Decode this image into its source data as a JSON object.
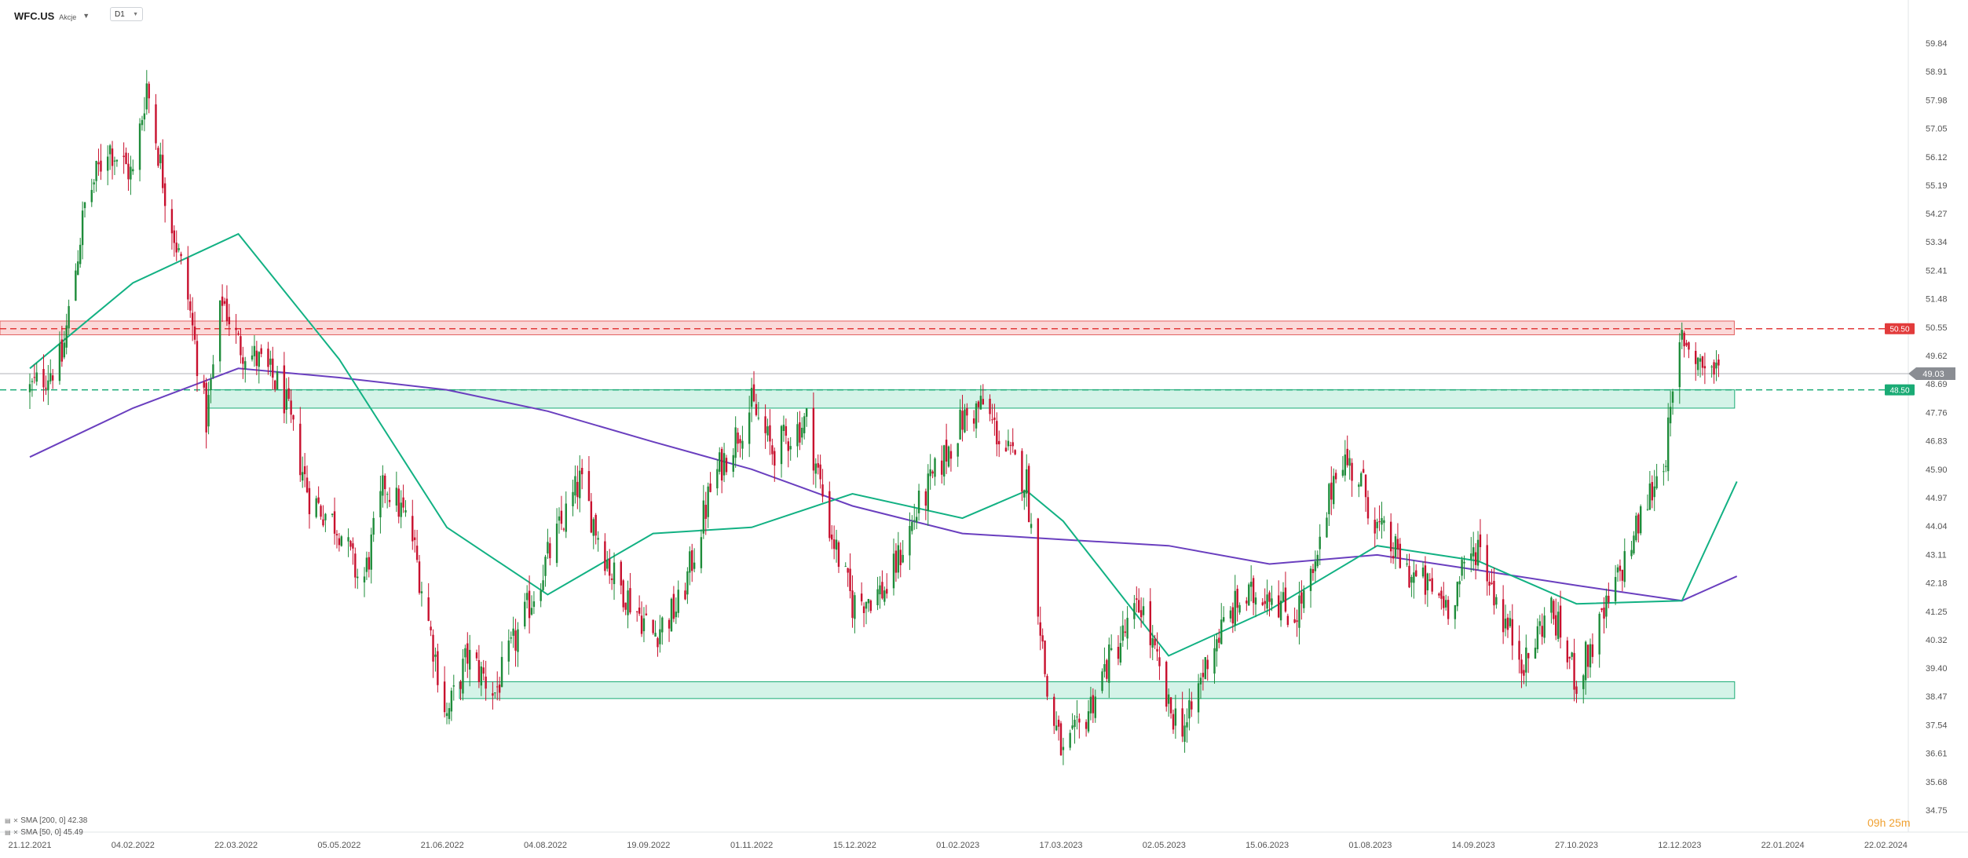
{
  "header": {
    "symbol": "WFC.US",
    "instrument_type": "Akcje",
    "timeframe": "D1"
  },
  "legend": {
    "sma200": "SMA [200, 0] 42.38",
    "sma50": "SMA [50, 0] 45.49"
  },
  "countdown": "09h 25m",
  "colors": {
    "up": "#1e8c3a",
    "down": "#c8102e",
    "sma200": "#6a3fbf",
    "sma50": "#12b183",
    "resistance": "#e23b3b",
    "support": "#1aab75",
    "price_tag": "#8a8d93"
  },
  "chart_data": {
    "type": "candlestick",
    "ylim": [
      34.75,
      60.5
    ],
    "y_ticks": [
      "59.84",
      "58.91",
      "57.98",
      "57.05",
      "56.12",
      "55.19",
      "54.27",
      "53.34",
      "52.41",
      "51.48",
      "50.55",
      "49.62",
      "48.69",
      "47.76",
      "46.83",
      "45.90",
      "44.97",
      "44.04",
      "43.11",
      "42.18",
      "41.25",
      "40.32",
      "39.40",
      "38.47",
      "37.54",
      "36.61",
      "35.68",
      "34.75"
    ],
    "x_ticks": [
      "21.12.2021",
      "04.02.2022",
      "22.03.2022",
      "05.05.2022",
      "21.06.2022",
      "04.08.2022",
      "19.09.2022",
      "01.11.2022",
      "15.12.2022",
      "01.02.2023",
      "17.03.2023",
      "02.05.2023",
      "15.06.2023",
      "01.08.2023",
      "14.09.2023",
      "27.10.2023",
      "12.12.2023",
      "22.01.2024",
      "22.02.2024"
    ],
    "price_path": [
      [
        "21.12.2021",
        48.5
      ],
      [
        "04.01.2022",
        49.5
      ],
      [
        "14.01.2022",
        54.5
      ],
      [
        "24.01.2022",
        56.5
      ],
      [
        "04.02.2022",
        55.5
      ],
      [
        "10.02.2022",
        58.5
      ],
      [
        "18.02.2022",
        55.0
      ],
      [
        "28.02.2022",
        51.5
      ],
      [
        "08.03.2022",
        47.5
      ],
      [
        "15.03.2022",
        51.5
      ],
      [
        "22.03.2022",
        50.0
      ],
      [
        "30.03.2022",
        49.5
      ],
      [
        "10.04.2022",
        48.5
      ],
      [
        "22.04.2022",
        45.0
      ],
      [
        "05.05.2022",
        44.0
      ],
      [
        "15.05.2022",
        42.0
      ],
      [
        "25.05.2022",
        45.5
      ],
      [
        "05.06.2022",
        44.0
      ],
      [
        "21.06.2022",
        37.8
      ],
      [
        "30.06.2022",
        39.8
      ],
      [
        "12.07.2022",
        38.6
      ],
      [
        "04.08.2022",
        43.0
      ],
      [
        "18.08.2022",
        45.5
      ],
      [
        "01.09.2022",
        42.5
      ],
      [
        "19.09.2022",
        40.5
      ],
      [
        "01.10.2022",
        41.5
      ],
      [
        "15.10.2022",
        45.5
      ],
      [
        "01.11.2022",
        48.0
      ],
      [
        "10.11.2022",
        46.5
      ],
      [
        "25.11.2022",
        47.5
      ],
      [
        "05.12.2022",
        44.0
      ],
      [
        "15.12.2022",
        41.5
      ],
      [
        "30.12.2022",
        42.0
      ],
      [
        "12.01.2023",
        44.5
      ],
      [
        "22.01.2023",
        46.0
      ],
      [
        "01.02.2023",
        47.5
      ],
      [
        "10.02.2023",
        48.0
      ],
      [
        "20.02.2023",
        46.5
      ],
      [
        "01.03.2023",
        45.5
      ],
      [
        "10.03.2023",
        38.5
      ],
      [
        "17.03.2023",
        36.5
      ],
      [
        "25.03.2023",
        37.5
      ],
      [
        "05.04.2023",
        39.5
      ],
      [
        "20.04.2023",
        41.5
      ],
      [
        "02.05.2023",
        38.0
      ],
      [
        "10.05.2023",
        37.5
      ],
      [
        "20.05.2023",
        40.0
      ],
      [
        "01.06.2023",
        41.5
      ],
      [
        "15.06.2023",
        42.0
      ],
      [
        "25.06.2023",
        41.0
      ],
      [
        "05.07.2023",
        42.5
      ],
      [
        "15.07.2023",
        46.5
      ],
      [
        "25.07.2023",
        45.5
      ],
      [
        "01.08.2023",
        44.0
      ],
      [
        "15.08.2023",
        42.5
      ],
      [
        "01.09.2023",
        41.5
      ],
      [
        "14.09.2023",
        43.5
      ],
      [
        "25.09.2023",
        41.0
      ],
      [
        "05.10.2023",
        39.5
      ],
      [
        "15.10.2023",
        41.5
      ],
      [
        "27.10.2023",
        39.0
      ],
      [
        "05.11.2023",
        40.5
      ],
      [
        "15.11.2023",
        42.5
      ],
      [
        "25.11.2023",
        44.5
      ],
      [
        "05.12.2023",
        46.5
      ],
      [
        "12.12.2023",
        50.3
      ],
      [
        "20.12.2023",
        49.4
      ],
      [
        "28.12.2023",
        49.03
      ]
    ],
    "sma50": [
      [
        "21.12.2021",
        49.2
      ],
      [
        "04.02.2022",
        52.0
      ],
      [
        "22.03.2022",
        53.6
      ],
      [
        "05.05.2022",
        49.5
      ],
      [
        "21.06.2022",
        44.0
      ],
      [
        "04.08.2022",
        41.8
      ],
      [
        "19.09.2022",
        43.8
      ],
      [
        "01.11.2022",
        44.0
      ],
      [
        "15.12.2022",
        45.1
      ],
      [
        "01.02.2023",
        44.3
      ],
      [
        "01.03.2023",
        45.2
      ],
      [
        "17.03.2023",
        44.2
      ],
      [
        "02.05.2023",
        39.8
      ],
      [
        "15.06.2023",
        41.3
      ],
      [
        "01.08.2023",
        43.4
      ],
      [
        "14.09.2023",
        42.9
      ],
      [
        "27.10.2023",
        41.5
      ],
      [
        "12.12.2023",
        41.6
      ],
      [
        "05.01.2024",
        45.5
      ]
    ],
    "sma200": [
      [
        "21.12.2021",
        46.3
      ],
      [
        "04.02.2022",
        47.9
      ],
      [
        "22.03.2022",
        49.2
      ],
      [
        "05.05.2022",
        48.9
      ],
      [
        "21.06.2022",
        48.5
      ],
      [
        "04.08.2022",
        47.8
      ],
      [
        "19.09.2022",
        46.8
      ],
      [
        "01.11.2022",
        45.9
      ],
      [
        "15.12.2022",
        44.7
      ],
      [
        "01.02.2023",
        43.8
      ],
      [
        "17.03.2023",
        43.6
      ],
      [
        "02.05.2023",
        43.4
      ],
      [
        "15.06.2023",
        42.8
      ],
      [
        "01.08.2023",
        43.1
      ],
      [
        "14.09.2023",
        42.6
      ],
      [
        "27.10.2023",
        42.1
      ],
      [
        "12.12.2023",
        41.6
      ],
      [
        "05.01.2024",
        42.4
      ]
    ],
    "levels": [
      {
        "name": "resistance",
        "price": 50.5,
        "label": "50.50",
        "zone": [
          50.3,
          50.75
        ]
      },
      {
        "name": "support",
        "price": 48.5,
        "label": "48.50",
        "zone": [
          47.9,
          48.5
        ]
      }
    ],
    "zones": [
      {
        "name": "support-lower",
        "range": [
          38.4,
          38.95
        ]
      }
    ],
    "last_price": {
      "value": 49.03,
      "label": "49.03"
    }
  }
}
